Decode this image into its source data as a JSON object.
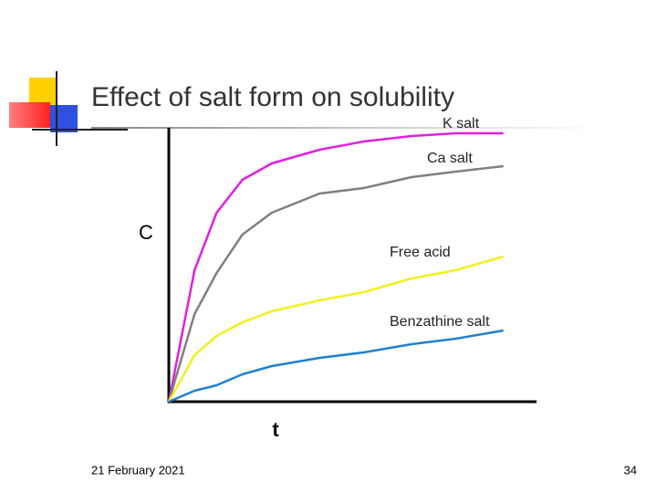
{
  "chart_data": {
    "type": "line",
    "title": "Effect of salt form on solubility",
    "x_label": "t",
    "y_label": "C",
    "x": [
      0,
      7,
      13,
      20,
      28,
      41,
      53,
      66,
      78,
      91
    ],
    "xlim": [
      0,
      100
    ],
    "ylim": [
      0,
      100
    ],
    "series": [
      {
        "name": "K salt",
        "color": "#e020e0",
        "values": [
          0,
          48,
          69,
          81,
          87,
          92,
          95,
          97,
          98,
          98
        ]
      },
      {
        "name": "Ca salt",
        "color": "#808080",
        "values": [
          0,
          32,
          47,
          61,
          69,
          76,
          78,
          82,
          84,
          86
        ]
      },
      {
        "name": "Free acid",
        "color": "#f0f020",
        "values": [
          0,
          17,
          24,
          29,
          33,
          37,
          40,
          45,
          48,
          53
        ]
      },
      {
        "name": "Benzathine salt",
        "color": "#2080d0",
        "values": [
          0,
          4,
          6,
          10,
          13,
          16,
          18,
          21,
          23,
          26
        ]
      }
    ]
  },
  "footer": {
    "date": "21 February 2021",
    "page": "34"
  }
}
